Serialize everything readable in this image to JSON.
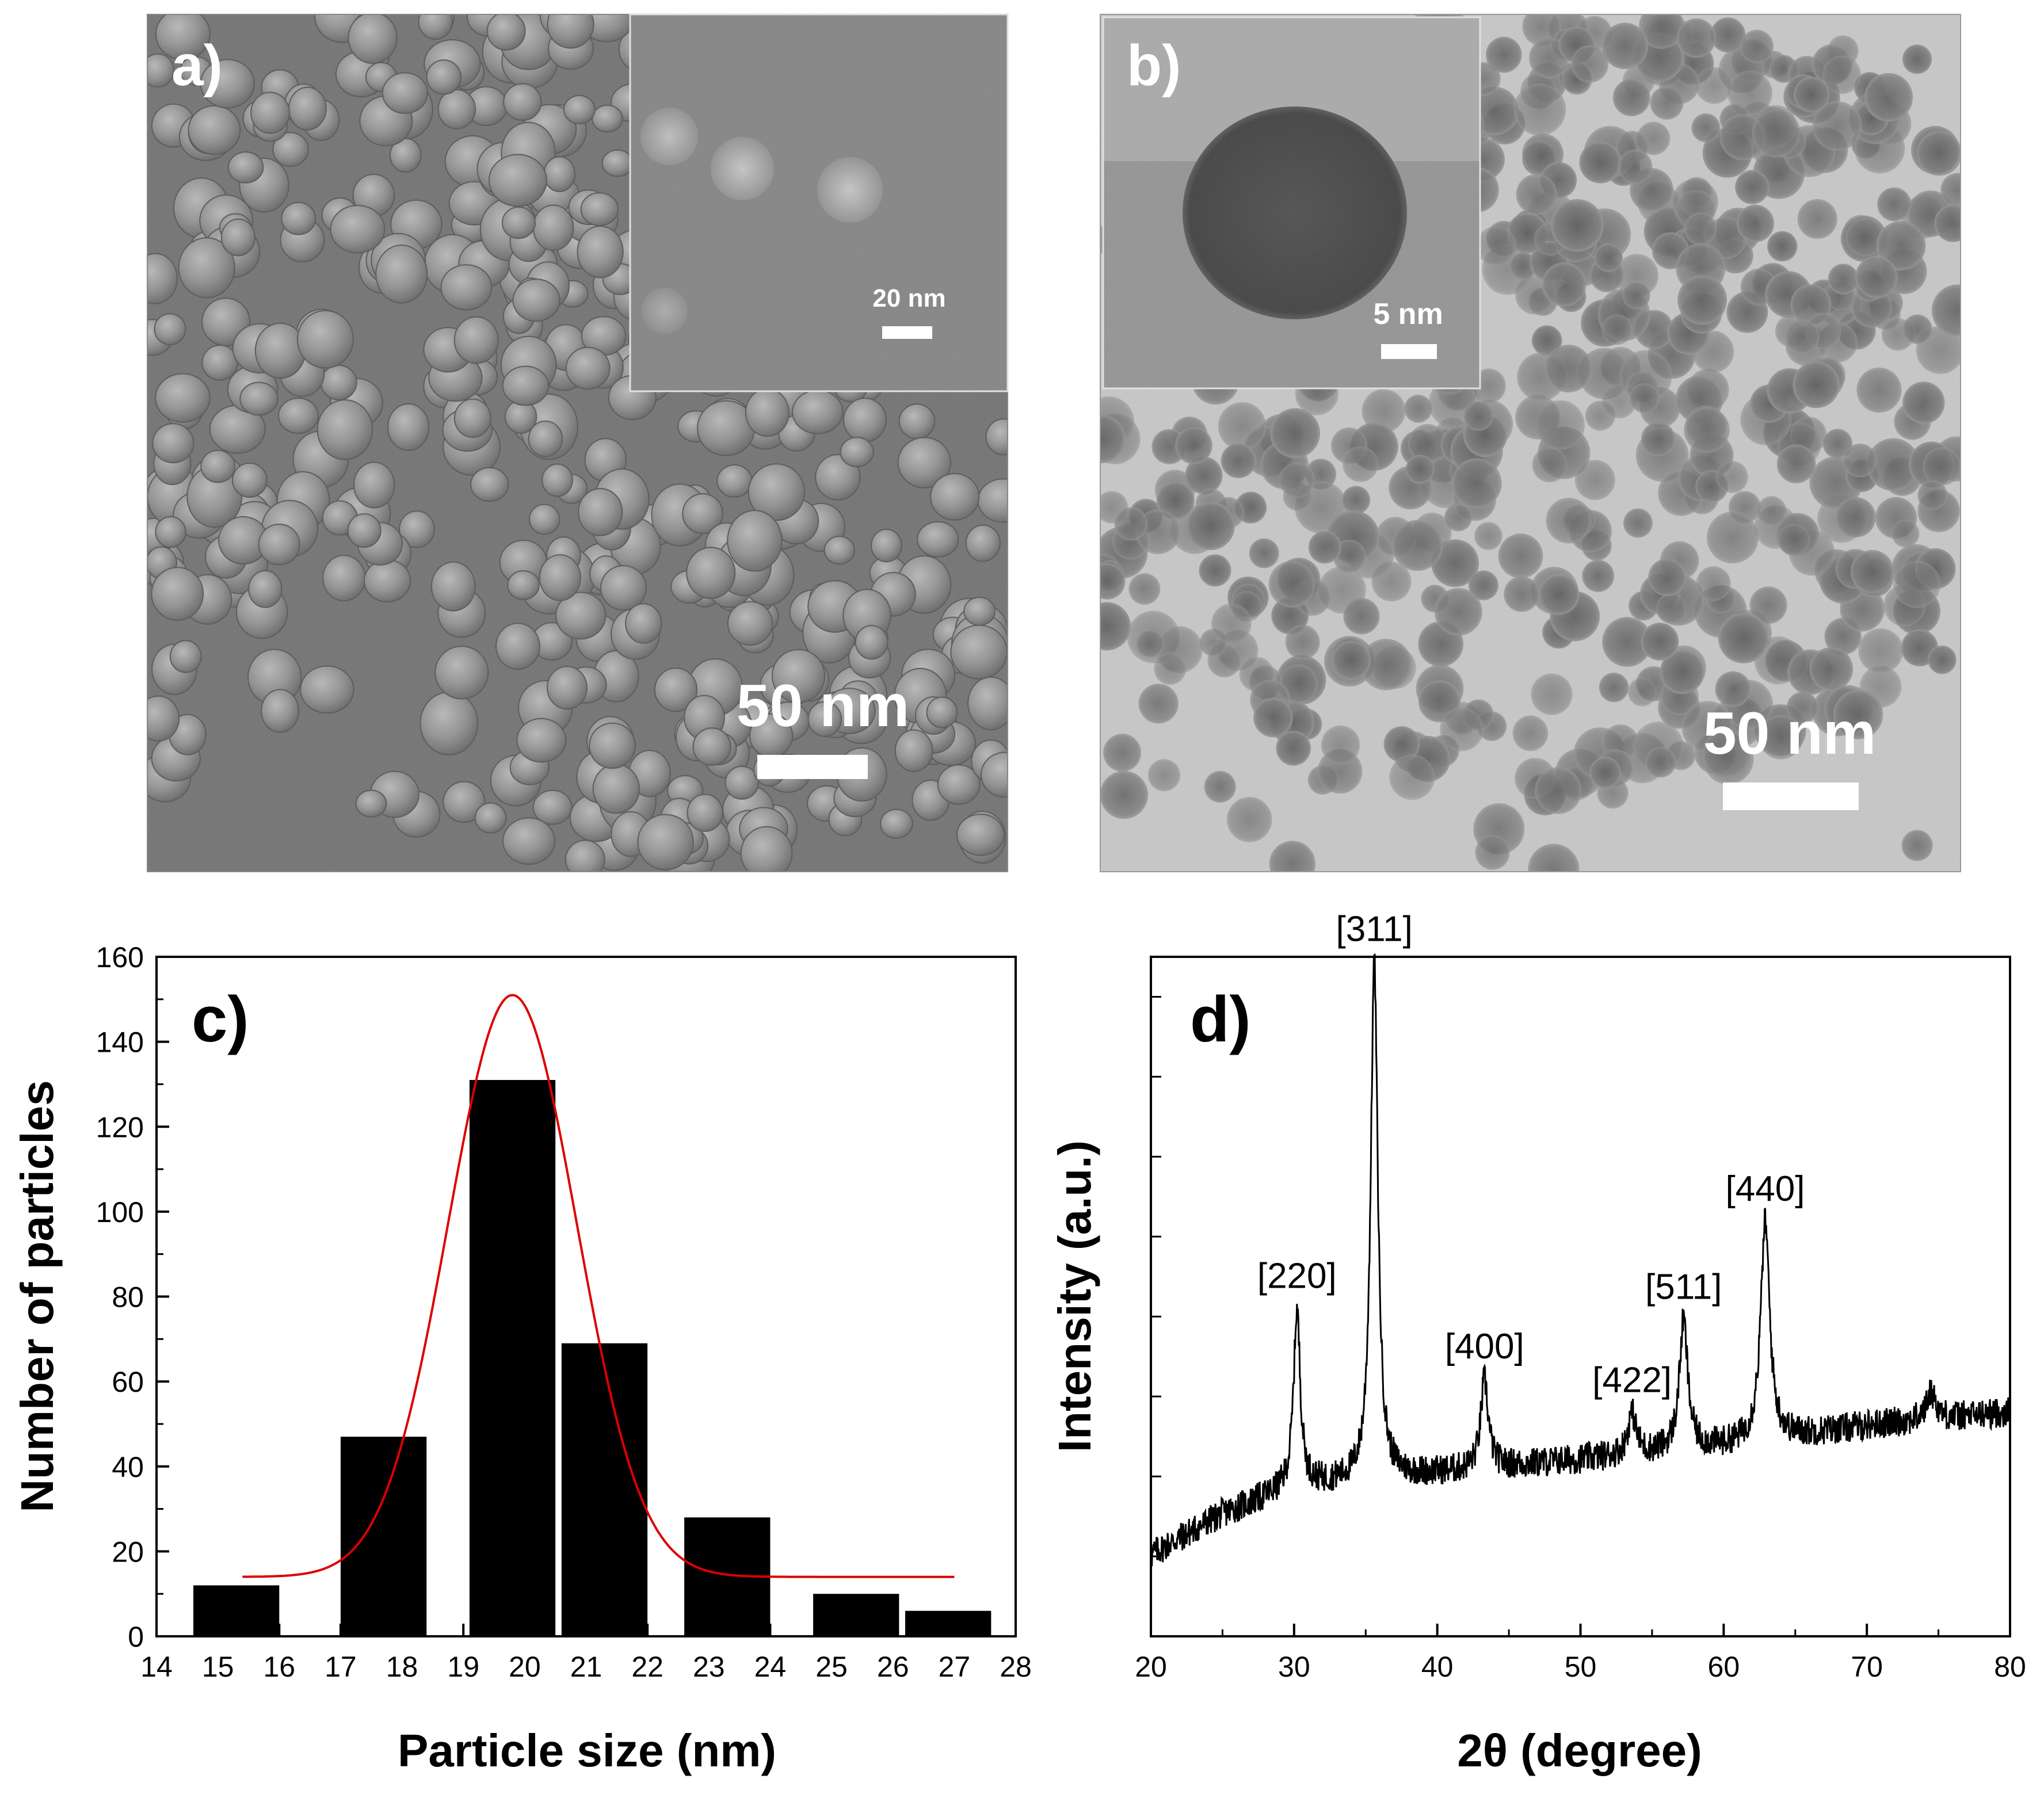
{
  "panels": {
    "a": {
      "label": "a)",
      "scale_main": "50 nm",
      "inset_scale": "20 nm"
    },
    "b": {
      "label": "b)",
      "scale_main": "50 nm",
      "inset_scale": "5 nm"
    }
  },
  "chart_data": [
    {
      "panel": "c",
      "label": "c)",
      "type": "bar",
      "xlabel": "Particle size (nm)",
      "ylabel": "Number of particles",
      "xlim": [
        14,
        28
      ],
      "ylim": [
        0,
        160
      ],
      "xticks": [
        14,
        15,
        16,
        17,
        18,
        19,
        20,
        21,
        22,
        23,
        24,
        25,
        26,
        27,
        28
      ],
      "yticks": [
        0,
        20,
        40,
        60,
        80,
        100,
        120,
        140,
        160
      ],
      "bars": [
        {
          "x0": 14.6,
          "x1": 16.0,
          "value": 12
        },
        {
          "x0": 17.0,
          "x1": 18.4,
          "value": 47
        },
        {
          "x0": 19.1,
          "x1": 20.5,
          "value": 131
        },
        {
          "x0": 20.6,
          "x1": 22.0,
          "value": 69
        },
        {
          "x0": 22.6,
          "x1": 24.0,
          "value": 28
        },
        {
          "x0": 24.7,
          "x1": 26.1,
          "value": 10
        },
        {
          "x0": 26.2,
          "x1": 27.6,
          "value": 6
        }
      ],
      "fit": {
        "type": "gaussian",
        "color": "#dd0000",
        "baseline": 14,
        "amplitude": 137,
        "center": 19.8,
        "sigma": 1.05,
        "x_range": [
          15.4,
          27.0
        ]
      },
      "bar_color": "#000000"
    },
    {
      "panel": "d",
      "label": "d)",
      "type": "line",
      "xlabel": "2θ (degree)",
      "ylabel": "Intensity (a.u.)",
      "xlim": [
        20,
        80
      ],
      "xticks": [
        20,
        30,
        40,
        50,
        60,
        70,
        80
      ],
      "y_minor_ticks": 8,
      "background": [
        [
          20,
          0.12
        ],
        [
          25,
          0.18
        ],
        [
          30,
          0.22
        ],
        [
          40,
          0.24
        ],
        [
          50,
          0.26
        ],
        [
          60,
          0.28
        ],
        [
          70,
          0.31
        ],
        [
          80,
          0.33
        ]
      ],
      "peaks": [
        {
          "x": 30.2,
          "height": 0.26,
          "width": 0.28,
          "label": "[220]"
        },
        {
          "x": 35.6,
          "height": 0.76,
          "width": 0.3,
          "label": "[311]"
        },
        {
          "x": 43.3,
          "height": 0.13,
          "width": 0.32,
          "label": "[400]"
        },
        {
          "x": 53.6,
          "height": 0.06,
          "width": 0.35,
          "label": "[422]"
        },
        {
          "x": 57.2,
          "height": 0.19,
          "width": 0.35,
          "label": "[511]"
        },
        {
          "x": 62.9,
          "height": 0.32,
          "width": 0.38,
          "label": "[440]"
        },
        {
          "x": 74.5,
          "height": 0.04,
          "width": 0.4,
          "label": ""
        }
      ],
      "line_color": "#000000"
    }
  ]
}
